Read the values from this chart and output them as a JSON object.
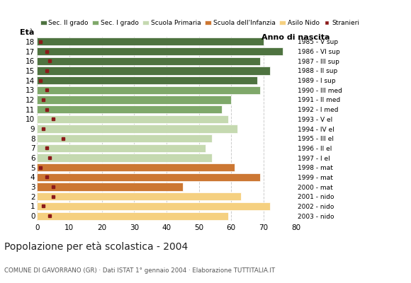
{
  "ages": [
    18,
    17,
    16,
    15,
    14,
    13,
    12,
    11,
    10,
    9,
    8,
    7,
    6,
    5,
    4,
    3,
    2,
    1,
    0
  ],
  "bar_values": [
    70,
    76,
    69,
    72,
    68,
    69,
    60,
    57,
    59,
    62,
    54,
    52,
    54,
    61,
    69,
    45,
    63,
    72,
    59
  ],
  "stranieri": [
    1,
    3,
    4,
    3,
    1,
    3,
    2,
    3,
    5,
    2,
    8,
    3,
    4,
    1,
    3,
    5,
    5,
    2,
    4
  ],
  "anno_nascita": [
    "1985 - V sup",
    "1986 - VI sup",
    "1987 - III sup",
    "1988 - II sup",
    "1989 - I sup",
    "1990 - III med",
    "1991 - II med",
    "1992 - I med",
    "1993 - V el",
    "1994 - IV el",
    "1995 - III el",
    "1996 - II el",
    "1997 - I el",
    "1998 - mat",
    "1999 - mat",
    "2000 - mat",
    "2001 - nido",
    "2002 - nido",
    "2003 - nido"
  ],
  "bar_colors": [
    "#4e7340",
    "#4e7340",
    "#4e7340",
    "#4e7340",
    "#4e7340",
    "#7fa86a",
    "#7fa86a",
    "#7fa86a",
    "#c5d9b0",
    "#c5d9b0",
    "#c5d9b0",
    "#c5d9b0",
    "#c5d9b0",
    "#cc7733",
    "#cc7733",
    "#cc7733",
    "#f5d080",
    "#f5d080",
    "#f5d080"
  ],
  "legend_labels": [
    "Sec. II grado",
    "Sec. I grado",
    "Scuola Primaria",
    "Scuola dell'Infanzia",
    "Asilo Nido",
    "Stranieri"
  ],
  "legend_colors": [
    "#4e7340",
    "#7fa86a",
    "#c5d9b0",
    "#cc7733",
    "#f5d080",
    "#8b1a1a"
  ],
  "title": "Popolazione per età scolastica - 2004",
  "subtitle": "COMUNE DI GAVORRANO (GR) · Dati ISTAT 1° gennaio 2004 · Elaborazione TUTTITALIA.IT",
  "xlabel_eta": "Età",
  "xlabel_anno": "Anno di nascita",
  "xlim": [
    0,
    80
  ],
  "xticks": [
    0,
    10,
    20,
    30,
    40,
    50,
    60,
    70,
    80
  ],
  "stranieri_color": "#8b1a1a",
  "bar_height": 0.82,
  "background_color": "#ffffff",
  "grid_color": "#cccccc"
}
